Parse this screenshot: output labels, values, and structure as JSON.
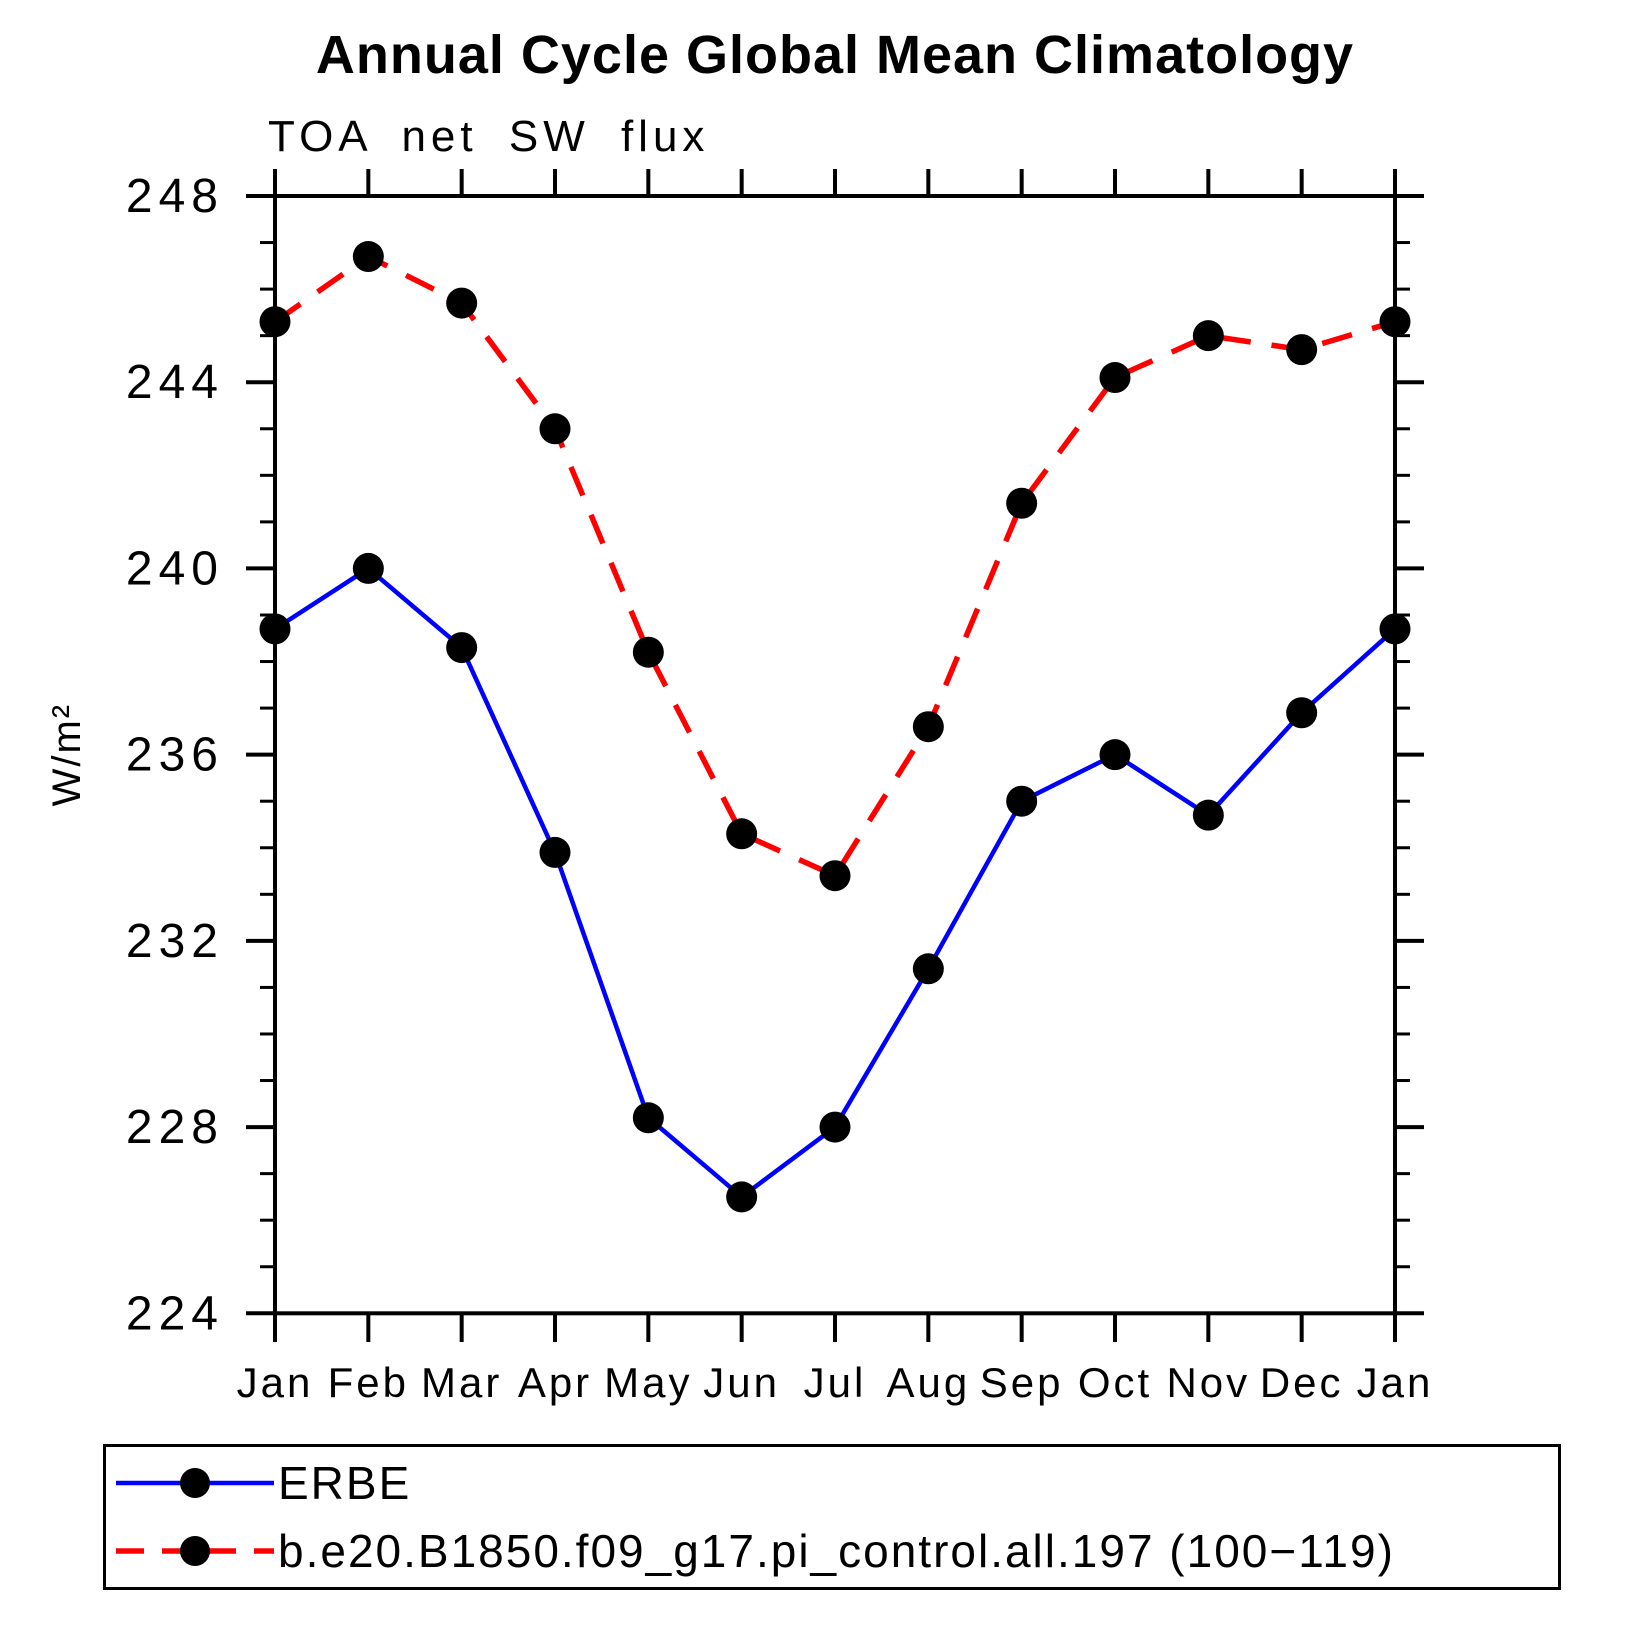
{
  "chart_data": {
    "type": "line",
    "title": "Annual Cycle Global Mean Climatology",
    "subtitle": "TOA net SW flux",
    "ylabel": "W/m²",
    "categories": [
      "Jan",
      "Feb",
      "Mar",
      "Apr",
      "May",
      "Jun",
      "Jul",
      "Aug",
      "Sep",
      "Oct",
      "Nov",
      "Dec",
      "Jan"
    ],
    "ylim": [
      224,
      248
    ],
    "ytick_major": [
      224,
      228,
      232,
      236,
      240,
      244,
      248
    ],
    "ytick_minor_step": 1,
    "grid": false,
    "legend_position": "bottom",
    "background_color": "#ffffff",
    "axis_color": "#000000",
    "marker_color": "#000000",
    "series": [
      {
        "name": "ERBE",
        "color": "#0000ff",
        "style": "solid",
        "marker": "circle",
        "values": [
          238.7,
          240.0,
          238.3,
          233.9,
          228.2,
          226.5,
          228.0,
          231.4,
          235.0,
          236.0,
          234.7,
          236.9,
          238.7
        ]
      },
      {
        "name": "b.e20.B1850.f09_g17.pi_control.all.197 (100−119)",
        "color": "#ff0000",
        "style": "dashed",
        "marker": "circle",
        "values": [
          245.3,
          246.7,
          245.7,
          243.0,
          238.2,
          234.3,
          233.4,
          236.6,
          241.4,
          244.1,
          245.0,
          244.7,
          245.3
        ]
      }
    ]
  }
}
